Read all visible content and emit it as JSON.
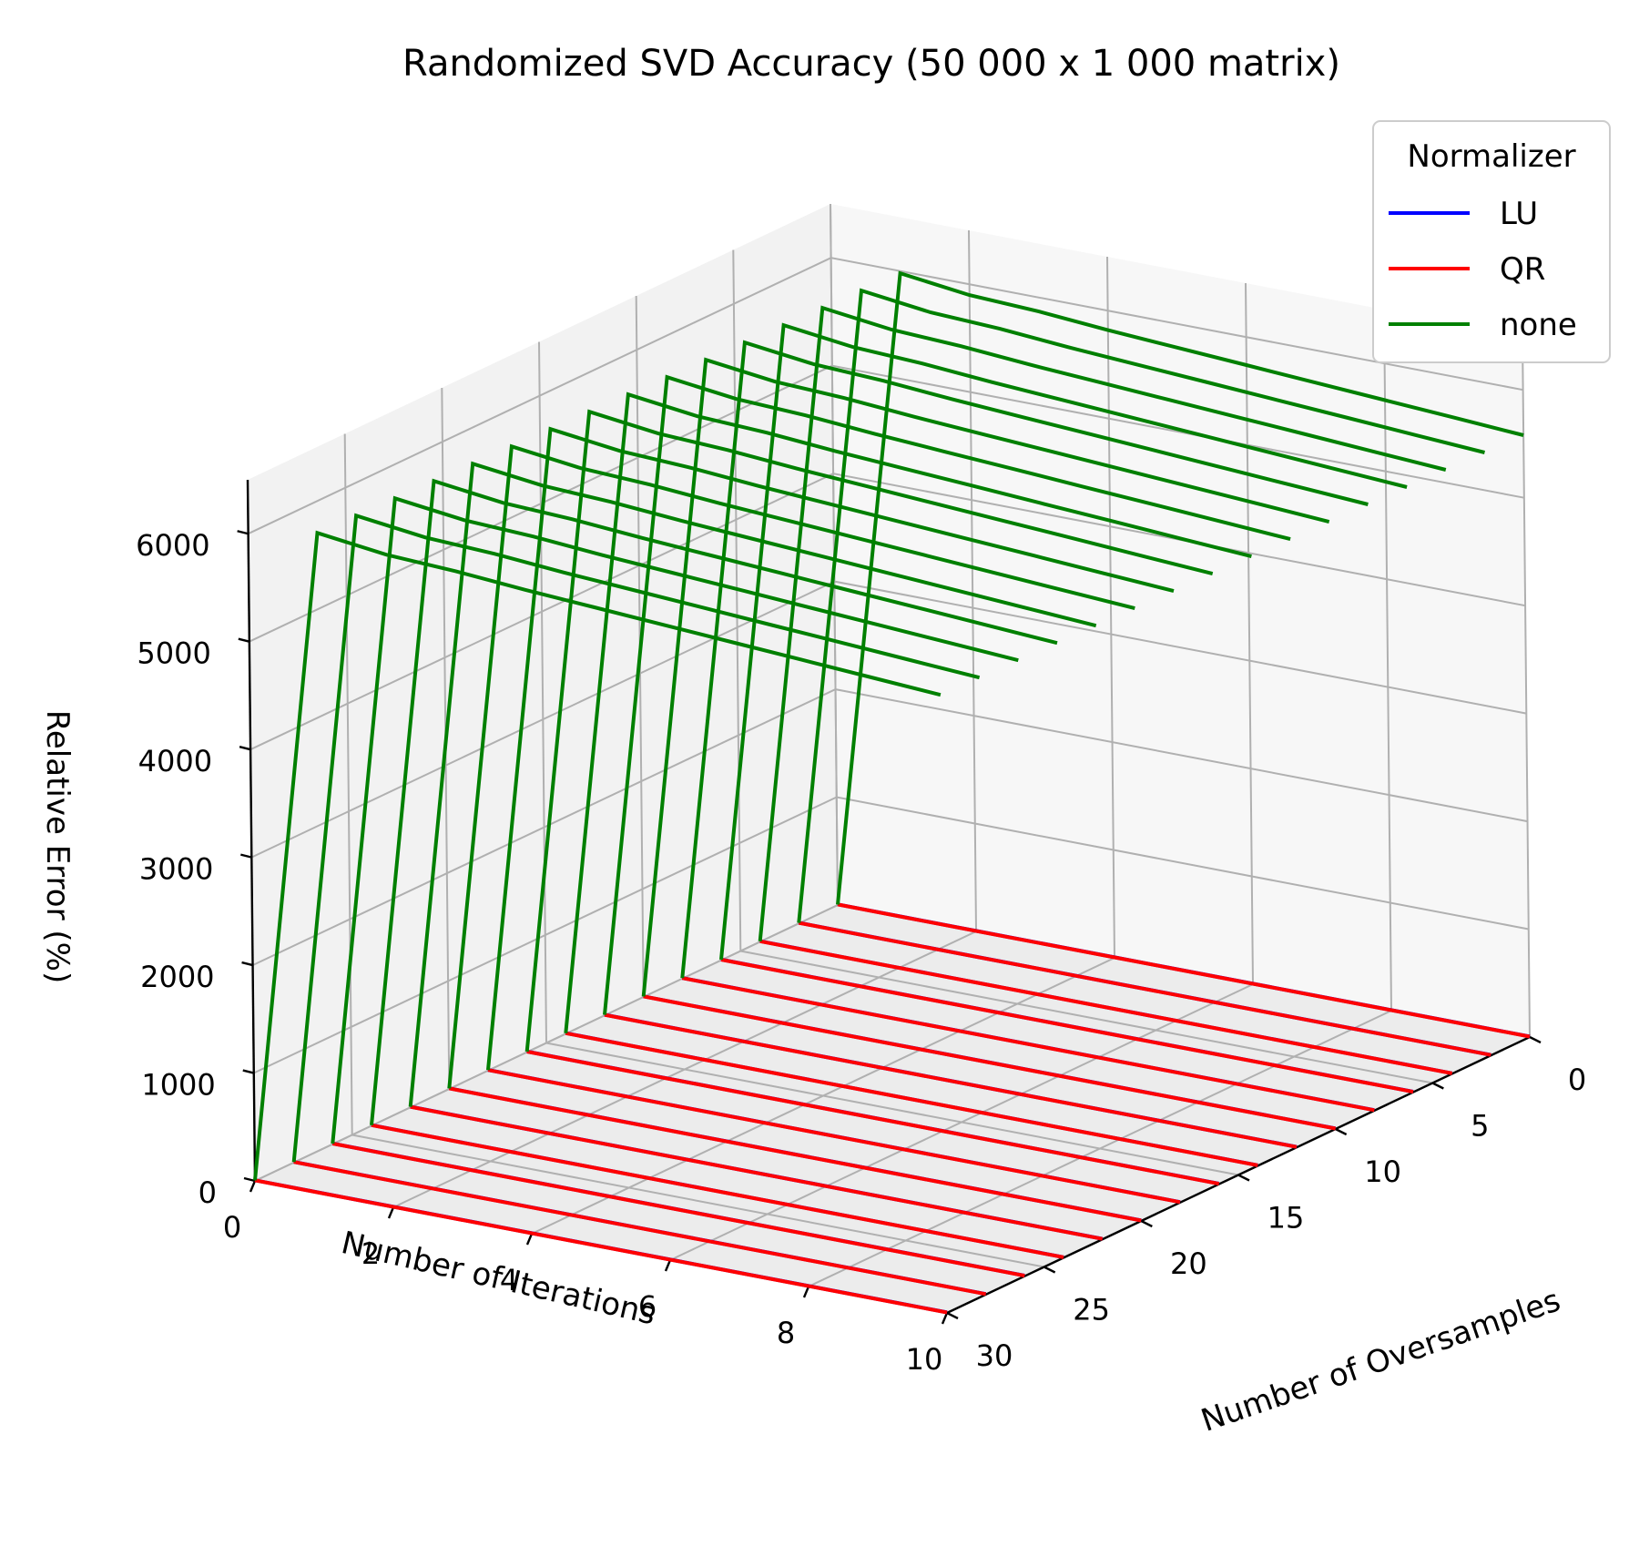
{
  "chart_data": {
    "type": "line3d",
    "title": "Randomized SVD Accuracy (50 000 x 1 000 matrix)",
    "xlabel": "Number of Iterations",
    "ylabel": "Number of Oversamples",
    "zlabel": "Relative Error (%)",
    "xlim": [
      0,
      10
    ],
    "ylim": [
      0,
      30
    ],
    "zlim": [
      0,
      6500
    ],
    "x_ticks": [
      "0",
      "2",
      "4",
      "6",
      "8",
      "10"
    ],
    "y_ticks": [
      "0",
      "5",
      "10",
      "15",
      "20",
      "25",
      "30"
    ],
    "z_ticks": [
      "0",
      "1000",
      "2000",
      "3000",
      "4000",
      "5000",
      "6000"
    ],
    "x_tick_values": [
      0,
      2,
      4,
      6,
      8,
      10
    ],
    "y_tick_values": [
      0,
      5,
      10,
      15,
      20,
      25,
      30
    ],
    "z_tick_values": [
      0,
      1000,
      2000,
      3000,
      4000,
      5000,
      6000
    ],
    "grid": true,
    "legend": {
      "title": "Normalizer",
      "position": "top-right",
      "entries": [
        {
          "name": "LU",
          "color": "#0000ff"
        },
        {
          "name": "QR",
          "color": "#ff0000"
        },
        {
          "name": "none",
          "color": "#008000"
        }
      ]
    },
    "iterations": [
      0,
      1,
      2,
      3,
      4,
      5,
      6,
      7,
      8,
      9,
      10
    ],
    "oversample_values": [
      0,
      2,
      4,
      6,
      8,
      10,
      12,
      14,
      16,
      18,
      20,
      22,
      24,
      26,
      28,
      30
    ],
    "series": [
      {
        "name": "LU",
        "color": "#0000ff",
        "values_by_oversample": [
          [
            6,
            5,
            5,
            5,
            5,
            5,
            5,
            5,
            5,
            5,
            5
          ],
          [
            6,
            5,
            5,
            5,
            5,
            5,
            5,
            5,
            5,
            5,
            5
          ],
          [
            6,
            5,
            5,
            5,
            5,
            5,
            5,
            5,
            5,
            5,
            5
          ],
          [
            6,
            5,
            5,
            5,
            5,
            5,
            5,
            5,
            5,
            5,
            5
          ],
          [
            6,
            5,
            5,
            5,
            5,
            5,
            5,
            5,
            5,
            5,
            5
          ],
          [
            6,
            5,
            5,
            5,
            5,
            5,
            5,
            5,
            5,
            5,
            5
          ],
          [
            6,
            5,
            5,
            5,
            5,
            5,
            5,
            5,
            5,
            5,
            5
          ],
          [
            6,
            5,
            5,
            5,
            5,
            5,
            5,
            5,
            5,
            5,
            5
          ],
          [
            6,
            5,
            5,
            5,
            5,
            5,
            5,
            5,
            5,
            5,
            5
          ],
          [
            6,
            5,
            5,
            5,
            5,
            5,
            5,
            5,
            5,
            5,
            5
          ],
          [
            6,
            5,
            5,
            5,
            5,
            5,
            5,
            5,
            5,
            5,
            5
          ],
          [
            6,
            5,
            5,
            5,
            5,
            5,
            5,
            5,
            5,
            5,
            5
          ],
          [
            6,
            5,
            5,
            5,
            5,
            5,
            5,
            5,
            5,
            5,
            5
          ],
          [
            6,
            5,
            5,
            5,
            5,
            5,
            5,
            5,
            5,
            5,
            5
          ],
          [
            6,
            5,
            5,
            5,
            5,
            5,
            5,
            5,
            5,
            5,
            5
          ],
          [
            6,
            5,
            5,
            5,
            5,
            5,
            5,
            5,
            5,
            5,
            5
          ]
        ]
      },
      {
        "name": "QR",
        "color": "#ff0000",
        "values_by_oversample": [
          [
            5,
            4,
            4,
            4,
            4,
            4,
            4,
            4,
            4,
            4,
            4
          ],
          [
            5,
            4,
            4,
            4,
            4,
            4,
            4,
            4,
            4,
            4,
            4
          ],
          [
            5,
            4,
            4,
            4,
            4,
            4,
            4,
            4,
            4,
            4,
            4
          ],
          [
            5,
            4,
            4,
            4,
            4,
            4,
            4,
            4,
            4,
            4,
            4
          ],
          [
            5,
            4,
            4,
            4,
            4,
            4,
            4,
            4,
            4,
            4,
            4
          ],
          [
            5,
            4,
            4,
            4,
            4,
            4,
            4,
            4,
            4,
            4,
            4
          ],
          [
            5,
            4,
            4,
            4,
            4,
            4,
            4,
            4,
            4,
            4,
            4
          ],
          [
            5,
            4,
            4,
            4,
            4,
            4,
            4,
            4,
            4,
            4,
            4
          ],
          [
            5,
            4,
            4,
            4,
            4,
            4,
            4,
            4,
            4,
            4,
            4
          ],
          [
            5,
            4,
            4,
            4,
            4,
            4,
            4,
            4,
            4,
            4,
            4
          ],
          [
            5,
            4,
            4,
            4,
            4,
            4,
            4,
            4,
            4,
            4,
            4
          ],
          [
            5,
            4,
            4,
            4,
            4,
            4,
            4,
            4,
            4,
            4,
            4
          ],
          [
            5,
            4,
            4,
            4,
            4,
            4,
            4,
            4,
            4,
            4,
            4
          ],
          [
            5,
            4,
            4,
            4,
            4,
            4,
            4,
            4,
            4,
            4,
            4
          ],
          [
            5,
            4,
            4,
            4,
            4,
            4,
            4,
            4,
            4,
            4,
            4
          ],
          [
            5,
            4,
            4,
            4,
            4,
            4,
            4,
            4,
            4,
            4,
            4
          ]
        ]
      },
      {
        "name": "none",
        "color": "#008000",
        "values_by_oversample": [
          [
            5,
            5980,
            5900,
            5870,
            5820,
            5780,
            5740,
            5700,
            5660,
            5620,
            5580
          ],
          [
            5,
            5990,
            5910,
            5880,
            5830,
            5790,
            5750,
            5710,
            5670,
            5630,
            5590
          ],
          [
            5,
            6000,
            5920,
            5890,
            5840,
            5800,
            5760,
            5720,
            5680,
            5640,
            5600
          ],
          [
            5,
            6010,
            5930,
            5900,
            5850,
            5810,
            5770,
            5730,
            5690,
            5650,
            5610
          ],
          [
            5,
            6020,
            5940,
            5910,
            5860,
            5820,
            5780,
            5740,
            5700,
            5660,
            5620
          ],
          [
            5,
            6030,
            5950,
            5920,
            5870,
            5830,
            5790,
            5750,
            5710,
            5670,
            5630
          ],
          [
            5,
            6040,
            5960,
            5930,
            5880,
            5840,
            5800,
            5760,
            5720,
            5680,
            5640
          ],
          [
            5,
            6050,
            5970,
            5940,
            5890,
            5850,
            5810,
            5770,
            5730,
            5690,
            5650
          ],
          [
            5,
            6060,
            5980,
            5950,
            5900,
            5860,
            5820,
            5780,
            5740,
            5700,
            5660
          ],
          [
            5,
            6070,
            5990,
            5960,
            5910,
            5870,
            5830,
            5790,
            5750,
            5710,
            5670
          ],
          [
            5,
            6080,
            6000,
            5970,
            5920,
            5880,
            5840,
            5800,
            5760,
            5720,
            5680
          ],
          [
            5,
            6090,
            6010,
            5980,
            5930,
            5890,
            5850,
            5810,
            5770,
            5730,
            5690
          ],
          [
            5,
            6100,
            6020,
            5990,
            5940,
            5900,
            5860,
            5820,
            5780,
            5740,
            5700
          ],
          [
            5,
            6110,
            6030,
            6000,
            5950,
            5910,
            5870,
            5830,
            5790,
            5750,
            5710
          ],
          [
            5,
            6120,
            6040,
            6010,
            5960,
            5920,
            5880,
            5840,
            5800,
            5760,
            5720
          ],
          [
            5,
            6130,
            6050,
            6020,
            5970,
            5930,
            5890,
            5850,
            5810,
            5770,
            5730
          ]
        ]
      }
    ]
  }
}
